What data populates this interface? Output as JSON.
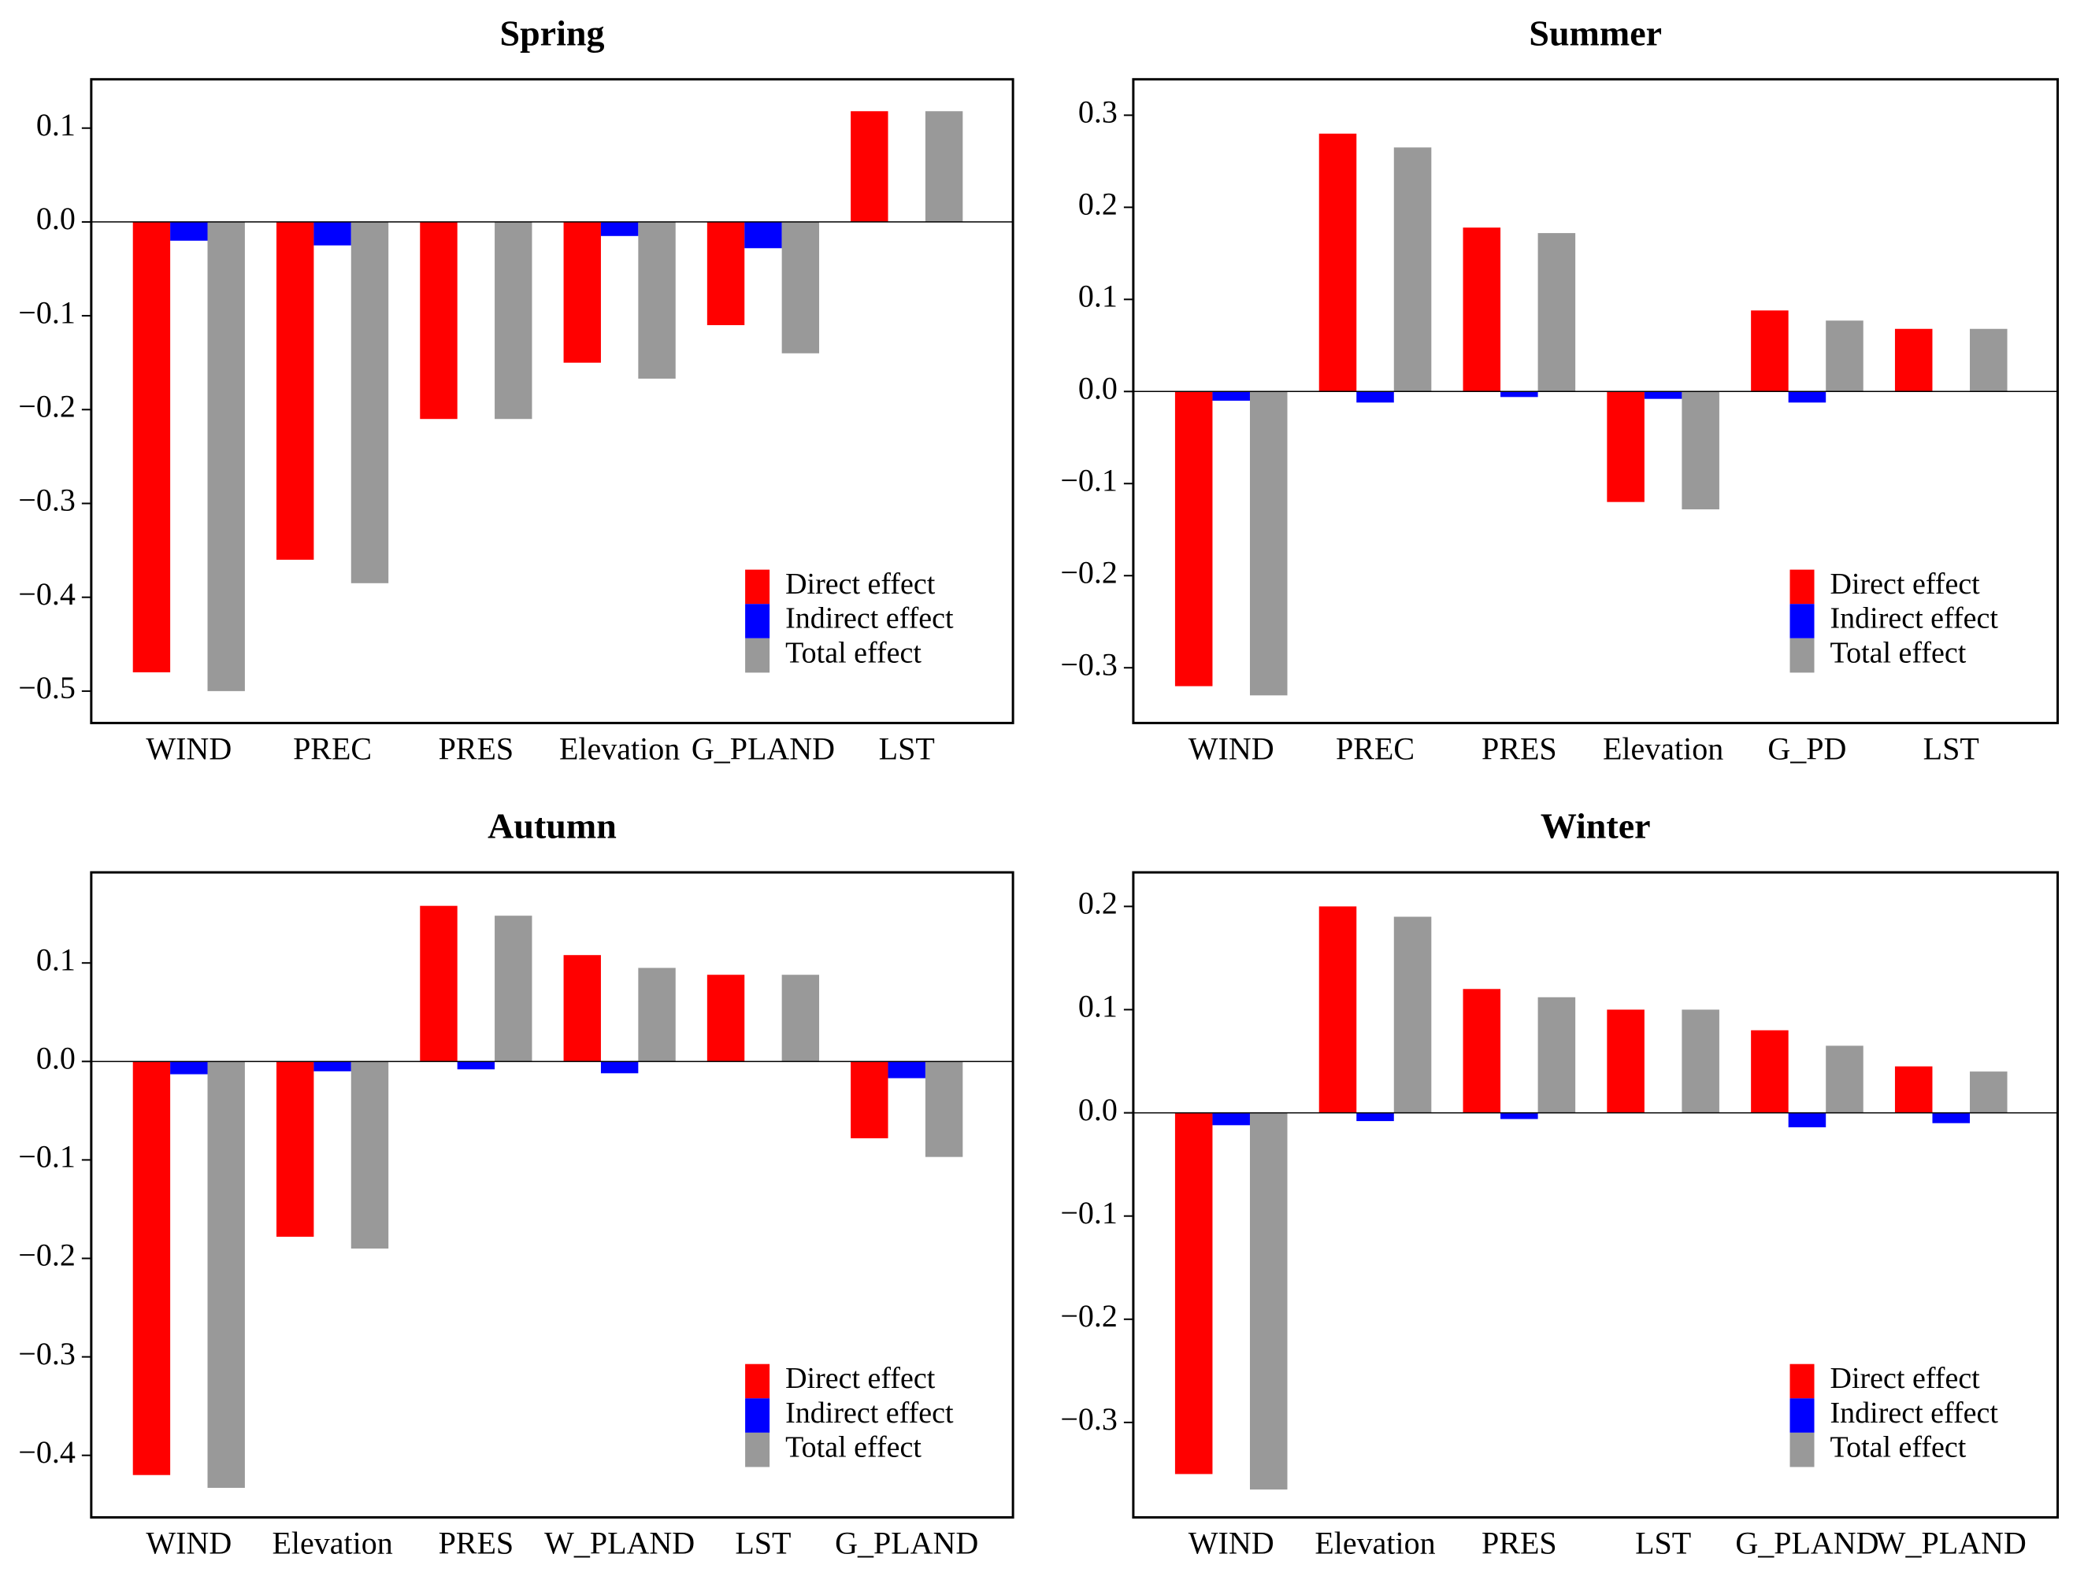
{
  "chart_data": [
    {
      "type": "bar",
      "title": "Spring",
      "categories": [
        "WIND",
        "PREC",
        "PRES",
        "Elevation",
        "G_PLAND",
        "LST"
      ],
      "series": [
        {
          "name": "Direct effect",
          "color": "#ff0000",
          "values": [
            -0.48,
            -0.36,
            -0.21,
            -0.15,
            -0.11,
            0.118
          ]
        },
        {
          "name": "Indirect effect",
          "color": "#0000ff",
          "values": [
            -0.02,
            -0.025,
            0,
            -0.015,
            -0.028,
            0
          ]
        },
        {
          "name": "Total effect",
          "color": "#999999",
          "values": [
            -0.5,
            -0.385,
            -0.21,
            -0.167,
            -0.14,
            0.118
          ]
        }
      ],
      "ylim": [
        -0.534,
        0.152
      ],
      "yticks": [
        0.1,
        {
          "value": 0,
          "label": "0.0"
        },
        {
          "value": -0.1,
          "label": "−0.1"
        },
        {
          "value": -0.2,
          "label": "−0.2"
        },
        {
          "value": -0.3,
          "label": "−0.3"
        },
        {
          "value": -0.4,
          "label": "−0.4"
        },
        {
          "value": -0.5,
          "label": "−0.5"
        }
      ],
      "legend": "lower right"
    },
    {
      "type": "bar",
      "title": "Summer",
      "categories": [
        "WIND",
        "PREC",
        "PRES",
        "Elevation",
        "G_PD",
        "LST"
      ],
      "series": [
        {
          "name": "Direct effect",
          "color": "#ff0000",
          "values": [
            -0.32,
            0.28,
            0.178,
            -0.12,
            0.088,
            0.068
          ]
        },
        {
          "name": "Indirect effect",
          "color": "#0000ff",
          "values": [
            -0.01,
            -0.012,
            -0.006,
            -0.008,
            -0.012,
            0
          ]
        },
        {
          "name": "Total effect",
          "color": "#999999",
          "values": [
            -0.33,
            0.265,
            0.172,
            -0.128,
            0.077,
            0.068
          ]
        }
      ],
      "ylim": [
        -0.36,
        0.339
      ],
      "yticks": [
        0.3,
        0.2,
        0.1,
        {
          "value": 0,
          "label": "0.0"
        },
        {
          "value": -0.1,
          "label": "−0.1"
        },
        {
          "value": -0.2,
          "label": "−0.2"
        },
        {
          "value": -0.3,
          "label": "−0.3"
        }
      ],
      "legend": "lower right"
    },
    {
      "type": "bar",
      "title": "Autumn",
      "categories": [
        "WIND",
        "Elevation",
        "PRES",
        "W_PLAND",
        "LST",
        "G_PLAND"
      ],
      "series": [
        {
          "name": "Direct effect",
          "color": "#ff0000",
          "values": [
            -0.42,
            -0.178,
            0.158,
            0.108,
            0.088,
            -0.078
          ]
        },
        {
          "name": "Indirect effect",
          "color": "#0000ff",
          "values": [
            -0.013,
            -0.01,
            -0.008,
            -0.012,
            0,
            -0.017
          ]
        },
        {
          "name": "Total effect",
          "color": "#999999",
          "values": [
            -0.433,
            -0.19,
            0.148,
            0.095,
            0.088,
            -0.097
          ]
        }
      ],
      "ylim": [
        -0.463,
        0.192
      ],
      "yticks": [
        0.1,
        {
          "value": 0,
          "label": "0.0"
        },
        {
          "value": -0.1,
          "label": "−0.1"
        },
        {
          "value": -0.2,
          "label": "−0.2"
        },
        {
          "value": -0.3,
          "label": "−0.3"
        },
        {
          "value": -0.4,
          "label": "−0.4"
        }
      ],
      "legend": "lower right"
    },
    {
      "type": "bar",
      "title": "Winter",
      "categories": [
        "WIND",
        "Elevation",
        "PRES",
        "LST",
        "G_PLAND",
        "W_PLAND"
      ],
      "series": [
        {
          "name": "Direct effect",
          "color": "#ff0000",
          "values": [
            -0.35,
            0.2,
            0.12,
            0.1,
            0.08,
            0.045
          ]
        },
        {
          "name": "Indirect effect",
          "color": "#0000ff",
          "values": [
            -0.012,
            -0.008,
            -0.006,
            0,
            -0.014,
            -0.01
          ]
        },
        {
          "name": "Total effect",
          "color": "#999999",
          "values": [
            -0.365,
            0.19,
            0.112,
            0.1,
            0.065,
            0.04
          ]
        }
      ],
      "ylim": [
        -0.392,
        0.233
      ],
      "yticks": [
        0.2,
        0.1,
        {
          "value": 0,
          "label": "0.0"
        },
        {
          "value": -0.1,
          "label": "−0.1"
        },
        {
          "value": -0.2,
          "label": "−0.2"
        },
        {
          "value": -0.3,
          "label": "−0.3"
        }
      ],
      "legend": "lower right"
    }
  ]
}
